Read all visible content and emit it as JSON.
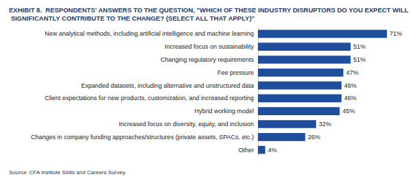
{
  "chart_data": {
    "type": "bar",
    "title": "EXHIBIT 8.  RESPONDENTS' ANSWERS TO THE QUESTION, \"WHICH OF THESE INDUSTRY DISRUPTORS DO YOU EXPECT WILL SIGNIFICANTLY CONTRIBUTE TO THE CHANGE? (SELECT ALL THAT APPLY)\"",
    "source": "Source: CFA Institute Skills and Careers Survey.",
    "orientation": "horizontal",
    "categories": [
      "New analytical methods, including artificial intelligence and machine learning",
      "Increased focus on sustainability",
      "Changing regulatory requirements",
      "Fee pressure",
      "Expanded datasets, including alternative and unstructured data",
      "Client expectations for new products, customization, and increased reporting",
      "Hybrid working model",
      "Increased focus on diversity, equity, and inclusion",
      "Changes in company funding approaches/structures (private assets, SPACs, etc.)",
      "Other"
    ],
    "values": [
      71,
      51,
      51,
      47,
      46,
      46,
      45,
      32,
      26,
      4
    ],
    "value_labels": [
      "71%",
      "51%",
      "51%",
      "47%",
      "46%",
      "46%",
      "45%",
      "32%",
      "26%",
      "4%"
    ],
    "color": "#1f4e9c",
    "data_labels": true,
    "tick_labels": "y",
    "grid": false
  }
}
